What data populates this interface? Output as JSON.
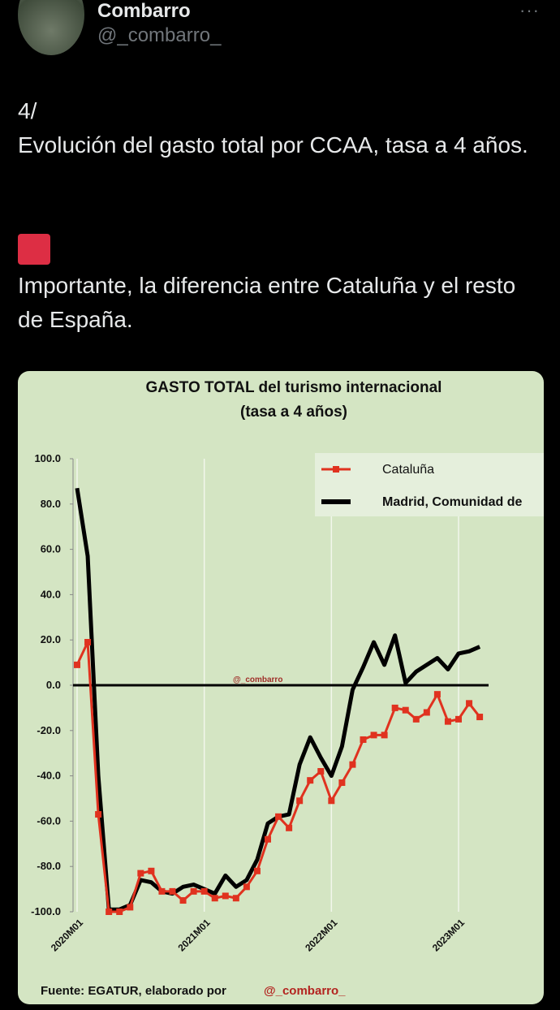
{
  "tweet": {
    "name": "Combarro",
    "handle": "@_combarro_",
    "text": [
      "4/",
      "Evolución del gasto total por CCAA, tasa a 4 años.",
      "Importante, la diferencia entre Cataluña y el resto de España."
    ]
  },
  "chart_data": {
    "type": "line",
    "title": [
      "GASTO TOTAL del turismo internacional",
      "(tasa a 4 años)"
    ],
    "annotation": "@_combarro",
    "source": "Fuente: EGATUR, elaborado por",
    "source_author": "@_combarro_",
    "categories": [
      "2020M01",
      null,
      null,
      null,
      null,
      null,
      null,
      null,
      null,
      null,
      null,
      null,
      "2021M01",
      null,
      null,
      null,
      null,
      null,
      null,
      null,
      null,
      null,
      null,
      null,
      "2022M01",
      null,
      null,
      null,
      null,
      null,
      null,
      null,
      null,
      null,
      null,
      null,
      "2023M01",
      null,
      null
    ],
    "series": [
      {
        "name": "Cataluña",
        "color": "#e0321f",
        "marker": "square",
        "values": [
          9,
          19,
          -57,
          -100,
          -100,
          -98,
          -83,
          -82,
          -91,
          -91,
          -95,
          -91,
          -91,
          -94,
          -93,
          -94,
          -89,
          -82,
          -68,
          -58,
          -63,
          -51,
          -42,
          -38,
          -51,
          -43,
          -35,
          -24,
          -22,
          -22,
          -10,
          -11,
          -15,
          -12,
          -4,
          -16,
          -15,
          -8,
          -14
        ]
      },
      {
        "name": "Madrid, Comunidad de",
        "color": "#000000",
        "marker": "none",
        "values": [
          87,
          57,
          -40,
          -99,
          -99,
          -97,
          -86,
          -87,
          -91,
          -92,
          -89,
          -88,
          -90,
          -92,
          -84,
          -89,
          -86,
          -77,
          -61,
          -58,
          -57,
          -35,
          -23,
          -32,
          -40,
          -27,
          -2,
          8,
          19,
          9,
          22,
          1,
          6,
          9,
          12,
          7,
          14,
          15,
          17
        ]
      }
    ],
    "ylim": [
      -100,
      100
    ],
    "yticks": [
      {
        "value": -100,
        "label": "-100.0"
      },
      {
        "value": -80,
        "label": "-80.0"
      },
      {
        "value": -60,
        "label": "-60.0"
      },
      {
        "value": -40,
        "label": "-40.0"
      },
      {
        "value": -20,
        "label": "-20.0"
      },
      {
        "value": 0,
        "label": "0.0"
      },
      {
        "value": 20,
        "label": "20.0"
      },
      {
        "value": 40,
        "label": "40.0"
      },
      {
        "value": 60,
        "label": "60.0"
      },
      {
        "value": 80,
        "label": "80.0"
      },
      {
        "value": 100,
        "label": "100.0"
      }
    ],
    "legend": "top-right",
    "grid": false
  }
}
